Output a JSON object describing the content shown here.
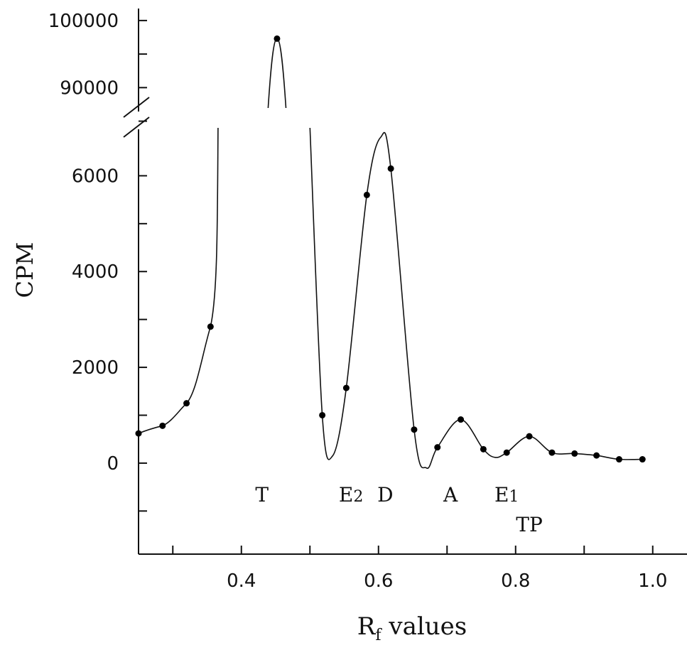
{
  "chart_data": {
    "type": "line",
    "title": "",
    "xlabel": "R",
    "xlabel_sub": "f",
    "xlabel_rest": " values",
    "ylabel": "CPM",
    "xlim": [
      0.25,
      1.05
    ],
    "x_ticks": [
      "0.4",
      "0.6",
      "0.8",
      "1.0"
    ],
    "x_tick_values": [
      0.4,
      0.6,
      0.8,
      1.0
    ],
    "y_ticks_lower": [
      "0",
      "2000",
      "4000",
      "6000"
    ],
    "y_tick_values_lower": [
      0,
      2000,
      4000,
      6000
    ],
    "y_ticks_upper": [
      "90000",
      "100000"
    ],
    "y_tick_values_upper": [
      90000,
      100000
    ],
    "ylim_lower": [
      -1900,
      7000
    ],
    "ylim_upper": [
      84000,
      102000
    ],
    "axis_break": true,
    "grid": false,
    "series": [
      {
        "x": [
          0.25,
          0.285,
          0.32,
          0.355,
          0.452,
          0.518,
          0.553,
          0.583,
          0.618,
          0.652,
          0.686,
          0.72,
          0.753,
          0.787,
          0.82,
          0.853,
          0.886,
          0.918,
          0.951,
          0.985
        ],
        "y": [
          620,
          780,
          1250,
          2850,
          97300,
          1000,
          1570,
          5600,
          6150,
          700,
          330,
          910,
          290,
          220,
          560,
          220,
          200,
          160,
          80,
          80
        ]
      }
    ],
    "annotations": [
      {
        "text": "T",
        "x": 0.43
      },
      {
        "text": "E",
        "sub": "2",
        "x": 0.56
      },
      {
        "text": "D",
        "x": 0.61
      },
      {
        "text": "A",
        "x": 0.705
      },
      {
        "text": "E",
        "sub": "1",
        "x": 0.787
      },
      {
        "text": "TP",
        "x": 0.82
      }
    ]
  }
}
